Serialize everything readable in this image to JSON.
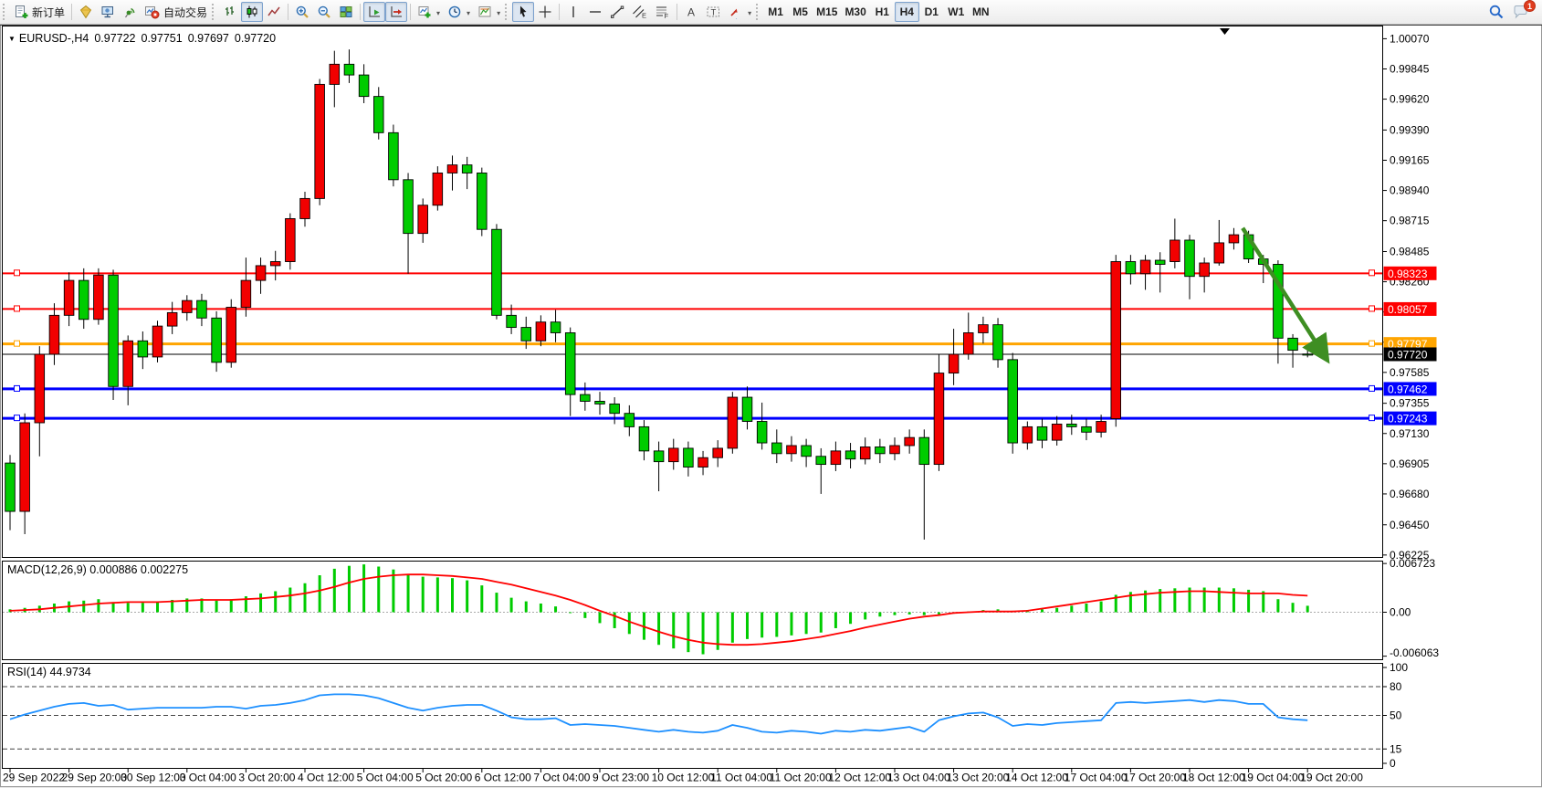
{
  "toolbar": {
    "new_order": "新订单",
    "autotrading": "自动交易",
    "timeframes": [
      "M1",
      "M5",
      "M15",
      "M30",
      "H1",
      "H4",
      "D1",
      "W1",
      "MN"
    ],
    "active_timeframe": "H4",
    "notification_badge": "1"
  },
  "chart": {
    "title": {
      "dropdown": "▼",
      "symbol_period": "EURUSD-,H4",
      "open": "0.97722",
      "high": "0.97751",
      "low": "0.97697",
      "close": "0.97720"
    },
    "macd_label": "MACD(12,26,9) 0.000886 0.002275",
    "rsi_label": "RSI(14) 44.9734"
  },
  "chart_data": {
    "type": "candlestick",
    "symbol": "EURUSD-",
    "timeframe": "H4",
    "colors": {
      "bull": "#f20000",
      "bear": "#00cc00",
      "wick": "#000000",
      "hline_red": "#ff0000",
      "hline_orange": "#ffa500",
      "hline_blue": "#0000ff",
      "bid": "#000000",
      "macd_hist": "#00cc00",
      "macd_signal": "#ff0000",
      "rsi_line": "#1e90ff",
      "arrow": "#3e8e22"
    },
    "price_ticks": [
      "1.00070",
      "0.99845",
      "0.99620",
      "0.99390",
      "0.99165",
      "0.98940",
      "0.98715",
      "0.98485",
      "0.98260",
      "0.98035",
      "0.97810",
      "0.97585",
      "0.97355",
      "0.97130",
      "0.96905",
      "0.96680",
      "0.96450",
      "0.96225"
    ],
    "time_labels": [
      "29 Sep 2022",
      "29 Sep 20:00",
      "30 Sep 12:00",
      "3 Oct 04:00",
      "3 Oct 20:00",
      "4 Oct 12:00",
      "5 Oct 04:00",
      "5 Oct 20:00",
      "6 Oct 12:00",
      "7 Oct 04:00",
      "9 Oct 23:00",
      "10 Oct 12:00",
      "11 Oct 04:00",
      "11 Oct 20:00",
      "12 Oct 12:00",
      "13 Oct 04:00",
      "13 Oct 20:00",
      "14 Oct 12:00",
      "17 Oct 04:00",
      "17 Oct 20:00",
      "18 Oct 12:00",
      "19 Oct 04:00",
      "19 Oct 20:00"
    ],
    "hlines": [
      {
        "price": 0.98323,
        "label": "0.98323",
        "color": "#ff0000",
        "width": 2
      },
      {
        "price": 0.98057,
        "label": "0.98057",
        "color": "#ff0000",
        "width": 2
      },
      {
        "price": 0.97797,
        "label": "0.97797",
        "color": "#ffa500",
        "width": 3
      },
      {
        "price": 0.97462,
        "label": "0.97462",
        "color": "#0000ff",
        "width": 3
      },
      {
        "price": 0.97243,
        "label": "0.97243",
        "color": "#0000ff",
        "width": 3
      }
    ],
    "bid_price": 0.9772,
    "bid_label": "0.97720",
    "arrow": {
      "from_candle": 83.6,
      "from_price": 0.9866,
      "to_candle": 89.2,
      "to_price": 0.977,
      "color": "#3e8e22"
    },
    "candles": [
      [
        0.9691,
        0.9697,
        0.9641,
        0.9655
      ],
      [
        0.9655,
        0.9728,
        0.9638,
        0.9721
      ],
      [
        0.9721,
        0.9778,
        0.9696,
        0.9772
      ],
      [
        0.9772,
        0.981,
        0.9764,
        0.9801
      ],
      [
        0.9801,
        0.9833,
        0.9793,
        0.9827
      ],
      [
        0.9827,
        0.9836,
        0.9791,
        0.9798
      ],
      [
        0.9798,
        0.9836,
        0.9794,
        0.9831
      ],
      [
        0.9831,
        0.9835,
        0.9738,
        0.9748
      ],
      [
        0.9748,
        0.9786,
        0.9734,
        0.9782
      ],
      [
        0.9782,
        0.9789,
        0.9761,
        0.977
      ],
      [
        0.977,
        0.9797,
        0.9766,
        0.9793
      ],
      [
        0.9793,
        0.9811,
        0.9787,
        0.9803
      ],
      [
        0.9803,
        0.9816,
        0.9797,
        0.9812
      ],
      [
        0.9812,
        0.9817,
        0.9793,
        0.9799
      ],
      [
        0.9799,
        0.9804,
        0.9759,
        0.9766
      ],
      [
        0.9766,
        0.9813,
        0.9762,
        0.9807
      ],
      [
        0.9807,
        0.9844,
        0.98,
        0.9827
      ],
      [
        0.9827,
        0.9844,
        0.9817,
        0.9838
      ],
      [
        0.9838,
        0.9849,
        0.9827,
        0.9841
      ],
      [
        0.9841,
        0.9877,
        0.9835,
        0.9873
      ],
      [
        0.9873,
        0.9893,
        0.9867,
        0.9888
      ],
      [
        0.9888,
        0.9977,
        0.9883,
        0.9973
      ],
      [
        0.9973,
        0.9998,
        0.9956,
        0.9988
      ],
      [
        0.9988,
        0.9999,
        0.9974,
        0.998
      ],
      [
        0.998,
        0.9988,
        0.9959,
        0.9964
      ],
      [
        0.9964,
        0.9971,
        0.9932,
        0.9937
      ],
      [
        0.9937,
        0.9943,
        0.9897,
        0.9902
      ],
      [
        0.9902,
        0.9907,
        0.9832,
        0.9862
      ],
      [
        0.9862,
        0.9888,
        0.9855,
        0.9883
      ],
      [
        0.9883,
        0.9912,
        0.9879,
        0.9907
      ],
      [
        0.9907,
        0.992,
        0.9894,
        0.9913
      ],
      [
        0.9913,
        0.9919,
        0.9895,
        0.9907
      ],
      [
        0.9907,
        0.9911,
        0.986,
        0.9865
      ],
      [
        0.9865,
        0.9869,
        0.9798,
        0.9801
      ],
      [
        0.9801,
        0.9809,
        0.9787,
        0.9792
      ],
      [
        0.9792,
        0.98,
        0.9776,
        0.9782
      ],
      [
        0.9782,
        0.9801,
        0.9778,
        0.9796
      ],
      [
        0.9796,
        0.9805,
        0.9781,
        0.9788
      ],
      [
        0.9788,
        0.9792,
        0.9726,
        0.9742
      ],
      [
        0.9742,
        0.9751,
        0.973,
        0.9737
      ],
      [
        0.9737,
        0.9744,
        0.9727,
        0.9735
      ],
      [
        0.9735,
        0.974,
        0.972,
        0.9728
      ],
      [
        0.9728,
        0.9734,
        0.9711,
        0.9718
      ],
      [
        0.9718,
        0.9723,
        0.9693,
        0.97
      ],
      [
        0.97,
        0.9707,
        0.967,
        0.9692
      ],
      [
        0.9692,
        0.9709,
        0.9686,
        0.9702
      ],
      [
        0.9702,
        0.9707,
        0.9681,
        0.9688
      ],
      [
        0.9688,
        0.97,
        0.9682,
        0.9695
      ],
      [
        0.9695,
        0.9708,
        0.9688,
        0.9702
      ],
      [
        0.9702,
        0.9744,
        0.9698,
        0.974
      ],
      [
        0.974,
        0.9748,
        0.9716,
        0.9722
      ],
      [
        0.9722,
        0.9736,
        0.9701,
        0.9706
      ],
      [
        0.9706,
        0.9716,
        0.9691,
        0.9698
      ],
      [
        0.9698,
        0.9711,
        0.9692,
        0.9704
      ],
      [
        0.9704,
        0.9709,
        0.9688,
        0.9696
      ],
      [
        0.9696,
        0.9702,
        0.9668,
        0.969
      ],
      [
        0.969,
        0.9707,
        0.9685,
        0.97
      ],
      [
        0.97,
        0.9706,
        0.9687,
        0.9694
      ],
      [
        0.9694,
        0.971,
        0.969,
        0.9703
      ],
      [
        0.9703,
        0.9709,
        0.9691,
        0.9698
      ],
      [
        0.9698,
        0.971,
        0.9693,
        0.9704
      ],
      [
        0.9704,
        0.9716,
        0.9698,
        0.971
      ],
      [
        0.971,
        0.9716,
        0.9634,
        0.969
      ],
      [
        0.969,
        0.9772,
        0.9685,
        0.9758
      ],
      [
        0.9758,
        0.9791,
        0.9749,
        0.9772
      ],
      [
        0.9772,
        0.9803,
        0.9768,
        0.9788
      ],
      [
        0.9788,
        0.98,
        0.978,
        0.9794
      ],
      [
        0.9794,
        0.9799,
        0.9762,
        0.9768
      ],
      [
        0.9768,
        0.9773,
        0.9698,
        0.9706
      ],
      [
        0.9706,
        0.9722,
        0.9701,
        0.9718
      ],
      [
        0.9718,
        0.9724,
        0.9702,
        0.9708
      ],
      [
        0.9708,
        0.9726,
        0.9704,
        0.972
      ],
      [
        0.972,
        0.9727,
        0.9712,
        0.9718
      ],
      [
        0.9718,
        0.9724,
        0.9708,
        0.9714
      ],
      [
        0.9714,
        0.9727,
        0.971,
        0.9722
      ],
      [
        0.9724,
        0.9846,
        0.9718,
        0.9841
      ],
      [
        0.9841,
        0.9846,
        0.9824,
        0.9832
      ],
      [
        0.9832,
        0.9846,
        0.982,
        0.9842
      ],
      [
        0.9842,
        0.9848,
        0.9818,
        0.9839
      ],
      [
        0.9841,
        0.9873,
        0.9836,
        0.9857
      ],
      [
        0.9857,
        0.9861,
        0.9813,
        0.983
      ],
      [
        0.983,
        0.9844,
        0.9818,
        0.984
      ],
      [
        0.984,
        0.9872,
        0.9838,
        0.9855
      ],
      [
        0.9855,
        0.9866,
        0.985,
        0.9861
      ],
      [
        0.9861,
        0.9864,
        0.984,
        0.9843
      ],
      [
        0.9843,
        0.9846,
        0.9825,
        0.9839
      ],
      [
        0.9839,
        0.9842,
        0.9765,
        0.9784
      ],
      [
        0.9784,
        0.9787,
        0.9762,
        0.9775
      ],
      [
        0.97722,
        0.97751,
        0.97697,
        0.9772
      ]
    ],
    "macd": {
      "name": "MACD",
      "params": "12,26,9",
      "value": "0.000886",
      "signal_value": "0.002275",
      "axis_ticks": [
        "0.006723",
        "0.00",
        "-0.006063"
      ],
      "axis_tick_values": [
        0.006723,
        0,
        -0.006063
      ],
      "histogram": [
        0.0004,
        0.0006,
        0.0009,
        0.0012,
        0.0015,
        0.0016,
        0.0018,
        0.0014,
        0.0013,
        0.0013,
        0.0015,
        0.0017,
        0.0019,
        0.0019,
        0.0016,
        0.0018,
        0.0022,
        0.0026,
        0.0029,
        0.0034,
        0.004,
        0.0051,
        0.006,
        0.0064,
        0.0066,
        0.0063,
        0.0059,
        0.0052,
        0.0049,
        0.0048,
        0.0047,
        0.0044,
        0.0037,
        0.0027,
        0.002,
        0.0015,
        0.0012,
        0.0008,
        0.0,
        -0.0008,
        -0.0015,
        -0.0022,
        -0.003,
        -0.0038,
        -0.0045,
        -0.005,
        -0.0055,
        -0.0058,
        -0.0052,
        -0.0042,
        -0.0037,
        -0.0035,
        -0.0034,
        -0.0032,
        -0.003,
        -0.0028,
        -0.0022,
        -0.0016,
        -0.001,
        -0.0006,
        -0.0004,
        -0.0003,
        -0.0004,
        -0.0003,
        -0.0002,
        0.0001,
        0.0003,
        0.0004,
        0.0002,
        0.0003,
        0.0004,
        0.0006,
        0.0009,
        0.0012,
        0.0015,
        0.0024,
        0.0028,
        0.003,
        0.0032,
        0.0033,
        0.0034,
        0.0034,
        0.0034,
        0.0033,
        0.0031,
        0.0029,
        0.0018,
        0.0013,
        0.00089
      ],
      "signal": [
        0.0002,
        0.0003,
        0.0004,
        0.0006,
        0.0008,
        0.001,
        0.0012,
        0.0013,
        0.0014,
        0.0014,
        0.0014,
        0.0015,
        0.0016,
        0.0017,
        0.0017,
        0.0017,
        0.0018,
        0.0019,
        0.0021,
        0.0023,
        0.0026,
        0.003,
        0.0035,
        0.0041,
        0.0046,
        0.0049,
        0.0051,
        0.0052,
        0.0052,
        0.0051,
        0.005,
        0.0048,
        0.0046,
        0.0042,
        0.0038,
        0.0033,
        0.0028,
        0.0023,
        0.0017,
        0.001,
        0.0002,
        -0.0005,
        -0.0013,
        -0.002,
        -0.0027,
        -0.0033,
        -0.0038,
        -0.0042,
        -0.0044,
        -0.0045,
        -0.0045,
        -0.0044,
        -0.0042,
        -0.004,
        -0.0037,
        -0.0034,
        -0.003,
        -0.0026,
        -0.0021,
        -0.0017,
        -0.0013,
        -0.0009,
        -0.0006,
        -0.0004,
        -0.0001,
        0.0,
        0.0001,
        0.0001,
        0.0001,
        0.0002,
        0.0005,
        0.0008,
        0.0011,
        0.0014,
        0.0017,
        0.002,
        0.0023,
        0.0025,
        0.0027,
        0.0028,
        0.0029,
        0.0029,
        0.0028,
        0.0027,
        0.0026,
        0.0026,
        0.0026,
        0.0024,
        0.002275
      ]
    },
    "rsi": {
      "name": "RSI",
      "period": "14",
      "value": "44.9734",
      "axis_ticks": [
        "100",
        "80",
        "50",
        "15",
        "0"
      ],
      "axis_tick_values": [
        100,
        80,
        50,
        15,
        0
      ],
      "levels": [
        80,
        50,
        15
      ],
      "values": [
        46,
        51,
        55,
        59,
        62,
        63,
        60,
        61,
        56,
        57,
        58,
        58,
        58,
        58,
        59,
        59,
        57,
        60,
        61,
        63,
        66,
        71,
        72,
        72,
        71,
        68,
        63,
        58,
        55,
        58,
        60,
        61,
        61,
        55,
        48,
        46,
        46,
        47,
        40,
        41,
        40,
        39,
        37,
        35,
        33,
        35,
        33,
        32,
        34,
        40,
        37,
        33,
        32,
        34,
        33,
        31,
        34,
        33,
        35,
        34,
        36,
        38,
        33,
        45,
        49,
        52,
        53,
        48,
        39,
        41,
        40,
        42,
        43,
        44,
        45,
        63,
        64,
        63,
        64,
        65,
        66,
        64,
        66,
        65,
        62,
        62,
        48,
        46,
        44.97
      ]
    }
  }
}
